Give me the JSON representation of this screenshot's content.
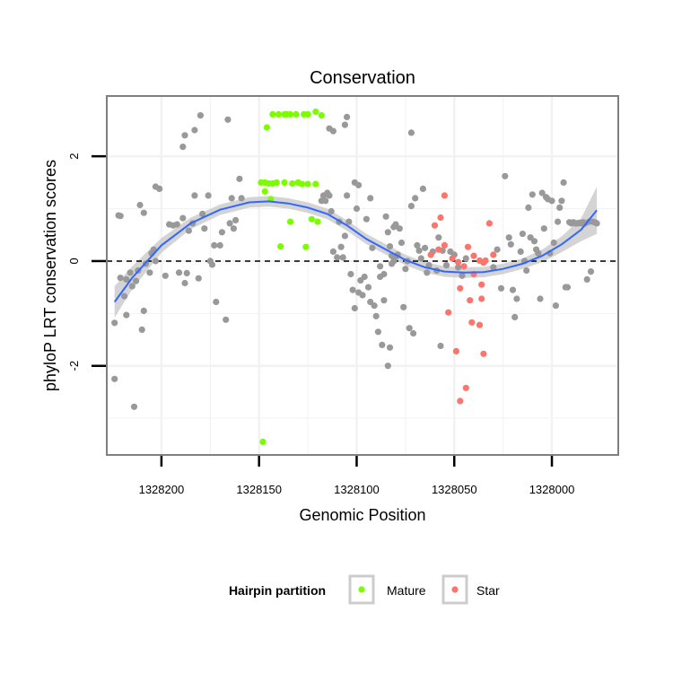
{
  "chart_data": {
    "type": "scatter",
    "title": "Conservation",
    "xlabel": "Genomic Position",
    "ylabel": "phyloP LRT conservation scores",
    "x_reversed": true,
    "xlim": [
      1328228,
      1327966
    ],
    "ylim": [
      -3.7,
      3.15
    ],
    "x_ticks": [
      1328200,
      1328150,
      1328100,
      1328050,
      1328000
    ],
    "x_tick_labels": [
      "1328200",
      "1328150",
      "1328100",
      "1328050",
      "1328000"
    ],
    "y_ticks": [
      2,
      0,
      -2
    ],
    "y_tick_labels": [
      "2",
      "0",
      "-2"
    ],
    "grid": true,
    "reference_line": {
      "y": 0,
      "style": "dashed"
    },
    "legend": {
      "title": "Hairpin partition",
      "position": "bottom",
      "entries": [
        {
          "label": "Mature",
          "color": "#7CFC00"
        },
        {
          "label": "Star",
          "color": "#F8766D"
        }
      ]
    },
    "colors": {
      "other": "#999999",
      "smooth": "#3366FF",
      "ribbon": "#CCCCCC",
      "panel_border": "#7F7F7F"
    },
    "series": [
      {
        "name": "Mature",
        "color": "#7CFC00",
        "points": [
          [
            1328143,
            2.8
          ],
          [
            1328140,
            2.8
          ],
          [
            1328137,
            2.8
          ],
          [
            1328136,
            2.8
          ],
          [
            1328134,
            2.8
          ],
          [
            1328131,
            2.8
          ],
          [
            1328127,
            2.8
          ],
          [
            1328125,
            2.8
          ],
          [
            1328118,
            2.78
          ],
          [
            1328121,
            2.85
          ],
          [
            1328146,
            2.55
          ],
          [
            1328149,
            1.5
          ],
          [
            1328147,
            1.5
          ],
          [
            1328145,
            1.48
          ],
          [
            1328143,
            1.48
          ],
          [
            1328141,
            1.5
          ],
          [
            1328137,
            1.5
          ],
          [
            1328133,
            1.48
          ],
          [
            1328130,
            1.5
          ],
          [
            1328128,
            1.47
          ],
          [
            1328125,
            1.47
          ],
          [
            1328121,
            1.47
          ],
          [
            1328147,
            1.33
          ],
          [
            1328144,
            1.18
          ],
          [
            1328134,
            0.75
          ],
          [
            1328123,
            0.8
          ],
          [
            1328120,
            0.75
          ],
          [
            1328139,
            0.28
          ],
          [
            1328126,
            0.27
          ],
          [
            1328148,
            -3.45
          ]
        ]
      },
      {
        "name": "Star",
        "color": "#F8766D",
        "points": [
          [
            1328055,
            1.25
          ],
          [
            1328057,
            0.83
          ],
          [
            1328060,
            0.68
          ],
          [
            1328032,
            0.72
          ],
          [
            1328062,
            0.12
          ],
          [
            1328058,
            0.22
          ],
          [
            1328055,
            0.3
          ],
          [
            1328051,
            0.05
          ],
          [
            1328048,
            -0.02
          ],
          [
            1328045,
            -0.1
          ],
          [
            1328043,
            0.27
          ],
          [
            1328040,
            0.1
          ],
          [
            1328037,
            0.01
          ],
          [
            1328035,
            -0.03
          ],
          [
            1328034,
            0.01
          ],
          [
            1328030,
            0.12
          ],
          [
            1328042,
            -0.75
          ],
          [
            1328047,
            -0.52
          ],
          [
            1328053,
            -0.98
          ],
          [
            1328041,
            -1.17
          ],
          [
            1328037,
            -1.22
          ],
          [
            1328036,
            -0.72
          ],
          [
            1328040,
            -0.25
          ],
          [
            1328036,
            -0.45
          ],
          [
            1328049,
            -1.72
          ],
          [
            1328035,
            -1.77
          ],
          [
            1328044,
            -2.42
          ],
          [
            1328047,
            -2.67
          ]
        ]
      },
      {
        "name": "",
        "color": "#999999",
        "points": [
          [
            1328224,
            -2.25
          ],
          [
            1328214,
            -2.78
          ],
          [
            1328224,
            -1.18
          ],
          [
            1328218,
            -1.03
          ],
          [
            1328210,
            -1.31
          ],
          [
            1328209,
            -0.95
          ],
          [
            1328222,
            0.87
          ],
          [
            1328221,
            0.86
          ],
          [
            1328211,
            1.07
          ],
          [
            1328203,
            1.42
          ],
          [
            1328201,
            1.38
          ],
          [
            1328209,
            0.92
          ],
          [
            1328221,
            -0.32
          ],
          [
            1328219,
            -0.67
          ],
          [
            1328218,
            -0.35
          ],
          [
            1328216,
            -0.22
          ],
          [
            1328215,
            -0.48
          ],
          [
            1328213,
            -0.38
          ],
          [
            1328212,
            -0.18
          ],
          [
            1328208,
            -0.05
          ],
          [
            1328206,
            -0.22
          ],
          [
            1328205,
            0.15
          ],
          [
            1328204,
            0.22
          ],
          [
            1328203,
            0.0
          ],
          [
            1328198,
            -0.28
          ],
          [
            1328196,
            0.7
          ],
          [
            1328194,
            0.68
          ],
          [
            1328192,
            0.7
          ],
          [
            1328191,
            -0.22
          ],
          [
            1328189,
            0.82
          ],
          [
            1328188,
            -0.42
          ],
          [
            1328187,
            -0.23
          ],
          [
            1328186,
            0.58
          ],
          [
            1328184,
            0.72
          ],
          [
            1328183,
            1.25
          ],
          [
            1328181,
            -0.33
          ],
          [
            1328179,
            0.9
          ],
          [
            1328178,
            0.62
          ],
          [
            1328176,
            1.25
          ],
          [
            1328175,
            0.0
          ],
          [
            1328174,
            -0.07
          ],
          [
            1328173,
            0.3
          ],
          [
            1328172,
            -0.78
          ],
          [
            1328170,
            0.3
          ],
          [
            1328169,
            0.55
          ],
          [
            1328189,
            2.18
          ],
          [
            1328188,
            2.4
          ],
          [
            1328183,
            2.5
          ],
          [
            1328180,
            2.78
          ],
          [
            1328166,
            2.7
          ],
          [
            1328165,
            0.72
          ],
          [
            1328164,
            1.2
          ],
          [
            1328163,
            0.62
          ],
          [
            1328159,
            1.2
          ],
          [
            1328160,
            1.57
          ],
          [
            1328162,
            0.78
          ],
          [
            1328167,
            -1.12
          ],
          [
            1328118,
            1.15
          ],
          [
            1328117,
            1.25
          ],
          [
            1328115,
            1.3
          ],
          [
            1328116,
            1.15
          ],
          [
            1328113,
            0.95
          ],
          [
            1328112,
            0.18
          ],
          [
            1328110,
            0.07
          ],
          [
            1328108,
            0.27
          ],
          [
            1328107,
            0.07
          ],
          [
            1328106,
            0.48
          ],
          [
            1328104,
            0.75
          ],
          [
            1328103,
            -0.25
          ],
          [
            1328102,
            -0.55
          ],
          [
            1328101,
            -0.9
          ],
          [
            1328099,
            -0.6
          ],
          [
            1328098,
            -0.37
          ],
          [
            1328097,
            -0.65
          ],
          [
            1328096,
            -0.3
          ],
          [
            1328094,
            -0.5
          ],
          [
            1328093,
            -0.78
          ],
          [
            1328091,
            -0.85
          ],
          [
            1328090,
            -1.05
          ],
          [
            1328089,
            -1.35
          ],
          [
            1328087,
            -1.6
          ],
          [
            1328086,
            -0.75
          ],
          [
            1328085,
            0.85
          ],
          [
            1328084,
            0.55
          ],
          [
            1328083,
            0.28
          ],
          [
            1328082,
            0.1
          ],
          [
            1328081,
            0.0
          ],
          [
            1328080,
            0.08
          ],
          [
            1328079,
            0.12
          ],
          [
            1328114,
            1.25
          ],
          [
            1328109,
            0.75
          ],
          [
            1328105,
            1.25
          ],
          [
            1328100,
            1.0
          ],
          [
            1328112,
            2.48
          ],
          [
            1328114,
            2.53
          ],
          [
            1328106,
            2.6
          ],
          [
            1328105,
            2.75
          ],
          [
            1328101,
            1.5
          ],
          [
            1328099,
            1.45
          ],
          [
            1328095,
            0.8
          ],
          [
            1328093,
            1.2
          ],
          [
            1328092,
            0.25
          ],
          [
            1328088,
            -0.3
          ],
          [
            1328088,
            -0.1
          ],
          [
            1328086,
            -0.25
          ],
          [
            1328084,
            -2.0
          ],
          [
            1328083,
            -1.65
          ],
          [
            1328082,
            -0.05
          ],
          [
            1328081,
            0.65
          ],
          [
            1328080,
            0.7
          ],
          [
            1328078,
            0.62
          ],
          [
            1328077,
            0.35
          ],
          [
            1328076,
            -0.88
          ],
          [
            1328075,
            -0.15
          ],
          [
            1328074,
            0.0
          ],
          [
            1328073,
            -1.28
          ],
          [
            1328072,
            1.05
          ],
          [
            1328071,
            -1.38
          ],
          [
            1328070,
            1.2
          ],
          [
            1328069,
            0.3
          ],
          [
            1328068,
            0.2
          ],
          [
            1328067,
            0.05
          ],
          [
            1328066,
            1.38
          ],
          [
            1328065,
            0.25
          ],
          [
            1328064,
            -0.22
          ],
          [
            1328063,
            -0.08
          ],
          [
            1328059,
            -0.18
          ],
          [
            1328057,
            -1.62
          ],
          [
            1328072,
            2.45
          ],
          [
            1328061,
            0.18
          ],
          [
            1328058,
            0.45
          ],
          [
            1328056,
            0.2
          ],
          [
            1328054,
            -0.08
          ],
          [
            1328052,
            0.18
          ],
          [
            1328050,
            0.12
          ],
          [
            1328048,
            -0.12
          ],
          [
            1328046,
            -0.28
          ],
          [
            1328044,
            0.05
          ],
          [
            1328030,
            -0.12
          ],
          [
            1328028,
            0.22
          ],
          [
            1328026,
            -0.52
          ],
          [
            1328024,
            1.62
          ],
          [
            1328022,
            0.45
          ],
          [
            1328021,
            0.32
          ],
          [
            1328020,
            -0.55
          ],
          [
            1328019,
            -1.07
          ],
          [
            1328018,
            -0.72
          ],
          [
            1328016,
            0.18
          ],
          [
            1328015,
            0.52
          ],
          [
            1328014,
            0.0
          ],
          [
            1328013,
            -0.18
          ],
          [
            1328012,
            1.02
          ],
          [
            1328011,
            0.45
          ],
          [
            1328010,
            1.27
          ],
          [
            1328009,
            0.38
          ],
          [
            1328008,
            0.22
          ],
          [
            1328007,
            0.15
          ],
          [
            1328006,
            -0.72
          ],
          [
            1328005,
            1.3
          ],
          [
            1328004,
            0.62
          ],
          [
            1328003,
            1.22
          ],
          [
            1328002,
            1.18
          ],
          [
            1328001,
            0.15
          ],
          [
            1328000,
            1.15
          ],
          [
            1327999,
            0.35
          ],
          [
            1327998,
            -0.85
          ],
          [
            1327997,
            0.75
          ],
          [
            1327996,
            1.02
          ],
          [
            1327995,
            1.15
          ],
          [
            1327994,
            1.5
          ],
          [
            1327993,
            -0.5
          ],
          [
            1327992,
            -0.5
          ],
          [
            1327991,
            0.74
          ],
          [
            1327990,
            0.72
          ],
          [
            1327989,
            0.74
          ],
          [
            1327988,
            0.72
          ],
          [
            1327987,
            0.72
          ],
          [
            1327986,
            0.73
          ],
          [
            1327985,
            0.72
          ],
          [
            1327984,
            0.74
          ],
          [
            1327983,
            0.72
          ],
          [
            1327982,
            -0.35
          ],
          [
            1327981,
            0.75
          ],
          [
            1327980,
            -0.2
          ],
          [
            1327979,
            0.75
          ],
          [
            1327978,
            0.74
          ],
          [
            1327977,
            0.72
          ]
        ]
      }
    ],
    "smooth_line": {
      "x": [
        1328224,
        1328215,
        1328200,
        1328185,
        1328170,
        1328155,
        1328145,
        1328135,
        1328125,
        1328115,
        1328105,
        1328095,
        1328085,
        1328075,
        1328065,
        1328055,
        1328045,
        1328035,
        1328025,
        1328015,
        1328005,
        1327995,
        1327985,
        1327977
      ],
      "y": [
        -0.78,
        -0.32,
        0.3,
        0.72,
        0.98,
        1.12,
        1.14,
        1.1,
        1.02,
        0.9,
        0.68,
        0.42,
        0.22,
        0.02,
        -0.12,
        -0.2,
        -0.22,
        -0.21,
        -0.15,
        -0.05,
        0.1,
        0.32,
        0.6,
        0.97
      ],
      "se": [
        0.3,
        0.22,
        0.14,
        0.11,
        0.1,
        0.1,
        0.1,
        0.1,
        0.1,
        0.1,
        0.1,
        0.1,
        0.1,
        0.1,
        0.1,
        0.1,
        0.1,
        0.1,
        0.1,
        0.1,
        0.12,
        0.15,
        0.22,
        0.45
      ]
    }
  }
}
